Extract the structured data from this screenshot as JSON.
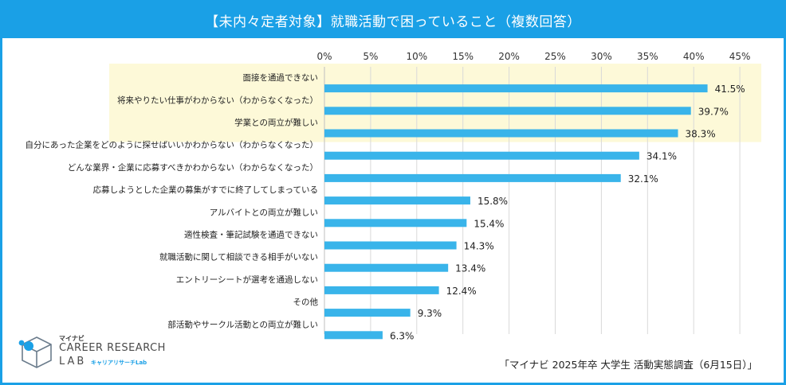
{
  "title": "【未内々定者対象】就職活動で困っていること（複数回答）",
  "source": "「マイナビ 2025年卒 大学生 活動実態調査（6月15日）」",
  "logo": {
    "top_small": "マイナビ",
    "main": "CAREER RESEARCH",
    "lab": "LAB",
    "sub": "キャリアリサーチLab"
  },
  "colors": {
    "accent": "#1aa0e6",
    "bar": "#39b4ea",
    "highlight": "#fdf9d8",
    "grid": "#d9d9d9"
  },
  "chart_data": {
    "type": "bar",
    "orientation": "horizontal",
    "title": "【未内々定者対象】就職活動で困っていること（複数回答）",
    "xlabel": "",
    "ylabel": "",
    "xlim": [
      0,
      45
    ],
    "ticks": [
      "0%",
      "5%",
      "10%",
      "15%",
      "20%",
      "25%",
      "30%",
      "35%",
      "40%",
      "45%"
    ],
    "tick_values": [
      0,
      5,
      10,
      15,
      20,
      25,
      30,
      35,
      40,
      45
    ],
    "highlighted_count": 3,
    "categories": [
      "面接を通過できない",
      "将来やりたい仕事がわからない（わからなくなった）",
      "学業との両立が難しい",
      "自分にあった企業をどのように探せばいいかわからない（わからなくなった）",
      "どんな業界・企業に応募すべきかわからない（わからなくなった）",
      "応募しようとした企業の募集がすでに終了してしまっている",
      "アルバイトとの両立が難しい",
      "適性検査・筆記試験を通過できない",
      "就職活動に関して相談できる相手がいない",
      "エントリーシートが選考を通過しない",
      "その他",
      "部活動やサークル活動との両立が難しい"
    ],
    "values": [
      41.5,
      39.7,
      38.3,
      34.1,
      32.1,
      15.8,
      15.4,
      14.3,
      13.4,
      12.4,
      9.3,
      6.3
    ],
    "value_labels": [
      "41.5%",
      "39.7%",
      "38.3%",
      "34.1%",
      "32.1%",
      "15.8%",
      "15.4%",
      "14.3%",
      "13.4%",
      "12.4%",
      "9.3%",
      "6.3%"
    ]
  }
}
